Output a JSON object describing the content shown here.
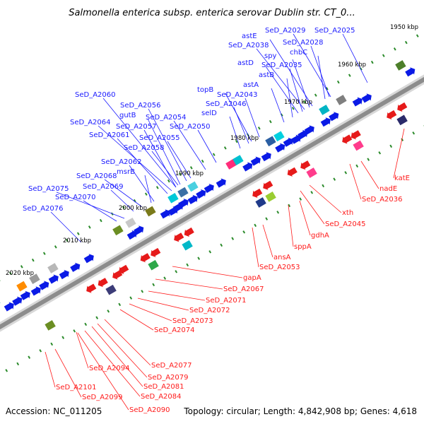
{
  "title": "Salmonella enterica subsp. enterica serovar Dublin str. CT_0...",
  "footer": {
    "accession": "Accession: NC_011205",
    "summary": "Topology: circular; Length: 4,842,908 bp; Genes: 4,618"
  },
  "colors": {
    "forward_label": "#1a1aff",
    "reverse_label": "#ff1a1a",
    "forward_arrow": "#0a1ae6",
    "reverse_arrow": "#e61a1a",
    "backbone": "#8c8c8c",
    "gc_dots": "#2a8a2a"
  },
  "scale_ticks": [
    "1950 kbp",
    "1960 kbp",
    "1970 kbp",
    "1980 kbp",
    "1990 kbp",
    "2000 kbp",
    "2010 kbp",
    "2020 kbp"
  ],
  "forward_genes": [
    "SeD_A2025",
    "SeD_A2029",
    "astE",
    "SeD_A2028",
    "SeD_A2038",
    "chbC",
    "spy",
    "astD",
    "SeD_A2035",
    "astB",
    "astA",
    "topB",
    "SeD_A2043",
    "SeD_A2046",
    "selD",
    "SeD_A2060",
    "SeD_A2056",
    "gutB",
    "SeD_A2054",
    "SeD_A2064",
    "SeD_A2057",
    "SeD_A2050",
    "SeD_A2061",
    "SeD_A2055",
    "SeD_A2058",
    "SeD_A2062",
    "msrB",
    "SeD_A2068",
    "SeD_A2069",
    "SeD_A2075",
    "SeD_A2070",
    "SeD_A2076"
  ],
  "reverse_genes": [
    "katE",
    "nadE",
    "SeD_A2036",
    "xth",
    "SeD_A2045",
    "gdhA",
    "sppA",
    "ansA",
    "SeD_A2053",
    "gapA",
    "SeD_A2067",
    "SeD_A2071",
    "SeD_A2072",
    "SeD_A2073",
    "SeD_A2074",
    "SeD_A2077",
    "SeD_A2094",
    "SeD_A2079",
    "SeD_A2081",
    "SeD_A2084",
    "SeD_A2101",
    "SeD_A2099",
    "SeD_A2090"
  ]
}
